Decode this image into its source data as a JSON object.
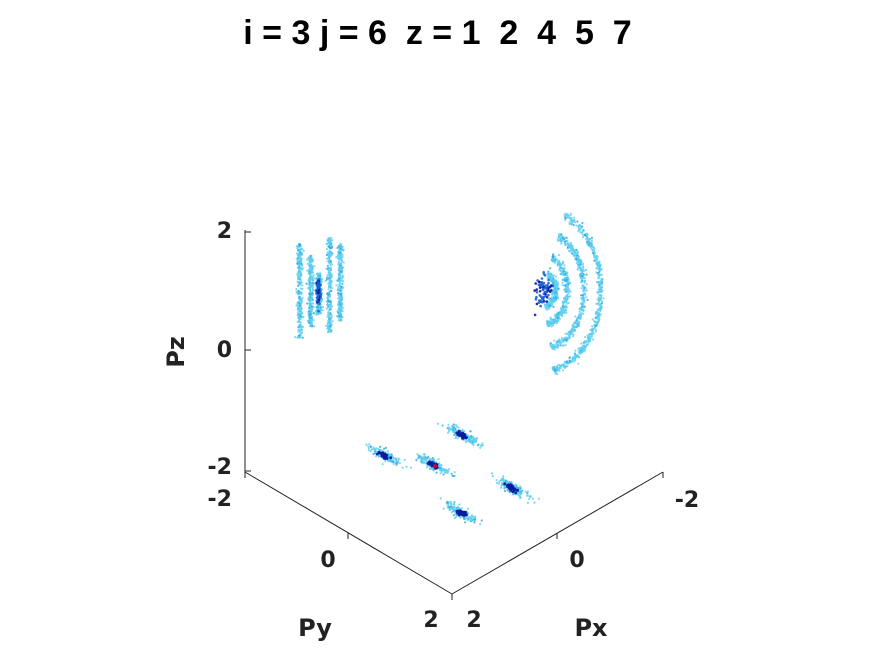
{
  "title": "i = 3 j = 6  z = 1  2  4  5  7",
  "chart_data": {
    "type": "scatter",
    "projection": "3d",
    "title": "i = 3 j = 6  z = 1  2  4  5  7",
    "xlabel": "Px",
    "ylabel": "Py",
    "zlabel": "Pz",
    "xlim": [
      -2,
      2
    ],
    "ylim": [
      -2,
      2
    ],
    "zlim": [
      -2,
      2
    ],
    "xticks": [
      "-2",
      "0",
      "2"
    ],
    "yticks": [
      "-2",
      "0",
      "2"
    ],
    "zticks": [
      "-2",
      "0",
      "2"
    ],
    "grid": false,
    "colormap": [
      "#5fd0f0",
      "#2aa8e0",
      "#1a5fd0",
      "#0a1aa0",
      "#c0003a"
    ],
    "projections": {
      "pz_py_wall": {
        "description": "density projected on Py-Pz wall",
        "features": [
          {
            "py": -1.6,
            "pz_range": [
              0.2,
              1.8
            ]
          },
          {
            "py": -1.2,
            "pz_range": [
              0.4,
              1.6
            ]
          },
          {
            "py": -0.9,
            "pz_range": [
              0.6,
              1.3
            ],
            "peak_pz": 1.0
          },
          {
            "py": -0.5,
            "pz_range": [
              0.3,
              1.9
            ]
          },
          {
            "py": -0.1,
            "pz_range": [
              0.5,
              1.8
            ]
          }
        ]
      },
      "pz_px_wall": {
        "description": "concentric arcs projected on Px-Pz wall",
        "arc_radii": [
          0.3,
          0.6,
          1.0,
          1.4
        ],
        "center": {
          "px": 0.3,
          "pz": 1.0
        }
      },
      "px_py_floor": {
        "description": "five elongated clusters on the floor",
        "clusters": [
          {
            "px": 0.8,
            "py": -1.0
          },
          {
            "px": 0.4,
            "py": -0.2
          },
          {
            "px": 0.0,
            "py": 0.4
          },
          {
            "px": -0.6,
            "py": -0.2
          },
          {
            "px": -0.6,
            "py": 0.8
          }
        ]
      }
    }
  }
}
